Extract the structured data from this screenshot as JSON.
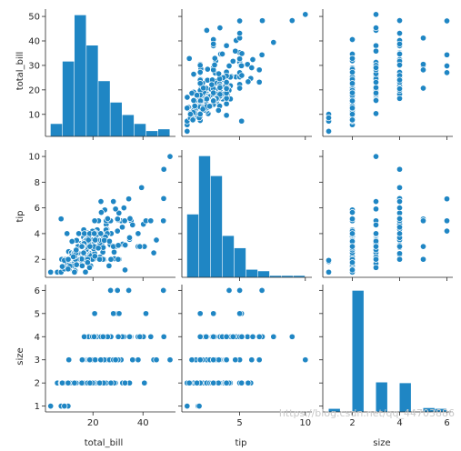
{
  "watermark": "https://blog.csdn.net/qq_44703886",
  "colors": {
    "marker": "#1f86c4",
    "hist": "#1f86c4",
    "edge": "#ffffff",
    "axis": "#262626"
  },
  "chart_data": {
    "type": "scatter",
    "variables": [
      "total_bill",
      "tip",
      "size"
    ],
    "axis_labels": {
      "total_bill": "total_bill",
      "tip": "tip",
      "size": "size"
    },
    "ranges": {
      "total_bill": [
        1.0,
        53.0
      ],
      "tip": [
        0.6,
        10.5
      ],
      "size": [
        0.75,
        6.25
      ]
    },
    "ticks": {
      "total_bill": [
        10,
        20,
        30,
        40,
        50
      ],
      "tip_y": [
        2,
        4,
        6,
        8,
        10
      ],
      "tip_x": [
        5,
        10
      ],
      "size_y": [
        1,
        2,
        3,
        4,
        5,
        6
      ],
      "size_x": [
        2,
        4,
        6
      ],
      "total_bill_x": [
        20,
        40
      ]
    },
    "grid": false,
    "legend": "none",
    "histograms": {
      "total_bill": {
        "edges": [
          3.07,
          7.85,
          12.63,
          17.41,
          22.19,
          26.97,
          31.75,
          36.53,
          41.31,
          46.09,
          50.87
        ],
        "counts": [
          7,
          42,
          68,
          51,
          31,
          19,
          12,
          7,
          3,
          4
        ]
      },
      "tip": {
        "edges": [
          1.0,
          1.9,
          2.8,
          3.7,
          4.6,
          5.5,
          6.4,
          7.3,
          8.2,
          9.1,
          10.0
        ],
        "counts": [
          41,
          79,
          66,
          27,
          19,
          5,
          4,
          1,
          1,
          1
        ]
      },
      "size": {
        "edges": [
          1.0,
          1.5,
          2.0,
          2.5,
          3.0,
          3.5,
          4.0,
          4.5,
          5.0,
          5.5,
          6.0
        ],
        "counts": [
          4,
          0,
          156,
          0,
          38,
          0,
          37,
          0,
          5,
          4
        ]
      }
    },
    "points": [
      [
        16.99,
        1.01,
        2
      ],
      [
        10.34,
        1.66,
        3
      ],
      [
        21.01,
        3.5,
        3
      ],
      [
        23.68,
        3.31,
        2
      ],
      [
        24.59,
        3.61,
        4
      ],
      [
        25.29,
        4.71,
        4
      ],
      [
        8.77,
        2.0,
        2
      ],
      [
        26.88,
        3.12,
        4
      ],
      [
        15.04,
        1.96,
        2
      ],
      [
        14.78,
        3.23,
        2
      ],
      [
        10.27,
        1.71,
        2
      ],
      [
        35.26,
        5.0,
        4
      ],
      [
        15.42,
        1.57,
        2
      ],
      [
        18.43,
        3.0,
        4
      ],
      [
        14.83,
        3.02,
        2
      ],
      [
        21.58,
        3.92,
        2
      ],
      [
        10.33,
        1.67,
        3
      ],
      [
        16.29,
        3.71,
        3
      ],
      [
        16.97,
        3.5,
        3
      ],
      [
        20.65,
        3.35,
        3
      ],
      [
        17.92,
        4.08,
        2
      ],
      [
        20.29,
        2.75,
        2
      ],
      [
        15.77,
        2.23,
        2
      ],
      [
        39.42,
        7.58,
        4
      ],
      [
        19.82,
        3.18,
        2
      ],
      [
        17.81,
        2.34,
        4
      ],
      [
        13.37,
        2.0,
        2
      ],
      [
        12.69,
        2.0,
        2
      ],
      [
        21.7,
        4.3,
        2
      ],
      [
        19.65,
        3.0,
        2
      ],
      [
        9.55,
        1.45,
        2
      ],
      [
        18.35,
        2.5,
        4
      ],
      [
        15.06,
        3.0,
        2
      ],
      [
        20.69,
        2.45,
        4
      ],
      [
        17.78,
        3.27,
        2
      ],
      [
        24.06,
        3.6,
        3
      ],
      [
        16.31,
        2.0,
        3
      ],
      [
        16.93,
        3.07,
        3
      ],
      [
        18.69,
        2.31,
        3
      ],
      [
        31.27,
        5.0,
        3
      ],
      [
        16.04,
        2.24,
        3
      ],
      [
        17.46,
        2.54,
        2
      ],
      [
        13.94,
        3.06,
        2
      ],
      [
        9.68,
        1.32,
        2
      ],
      [
        30.4,
        5.6,
        4
      ],
      [
        18.29,
        3.0,
        2
      ],
      [
        22.23,
        5.0,
        2
      ],
      [
        32.4,
        6.0,
        4
      ],
      [
        28.55,
        2.05,
        3
      ],
      [
        18.04,
        3.0,
        2
      ],
      [
        12.54,
        2.5,
        2
      ],
      [
        10.29,
        2.6,
        2
      ],
      [
        34.81,
        5.2,
        4
      ],
      [
        9.94,
        1.56,
        2
      ],
      [
        25.56,
        4.34,
        4
      ],
      [
        19.49,
        3.51,
        2
      ],
      [
        38.01,
        3.0,
        4
      ],
      [
        26.41,
        1.5,
        2
      ],
      [
        11.24,
        1.76,
        2
      ],
      [
        48.27,
        6.73,
        4
      ],
      [
        20.29,
        3.21,
        2
      ],
      [
        13.81,
        2.0,
        2
      ],
      [
        11.02,
        1.98,
        2
      ],
      [
        18.29,
        3.76,
        4
      ],
      [
        17.59,
        2.64,
        3
      ],
      [
        20.08,
        3.15,
        3
      ],
      [
        16.45,
        2.47,
        2
      ],
      [
        3.07,
        1.0,
        1
      ],
      [
        20.23,
        2.01,
        2
      ],
      [
        15.01,
        2.09,
        2
      ],
      [
        12.02,
        1.97,
        2
      ],
      [
        17.07,
        3.0,
        3
      ],
      [
        26.86,
        3.14,
        2
      ],
      [
        25.28,
        5.0,
        2
      ],
      [
        14.73,
        2.2,
        2
      ],
      [
        10.51,
        1.25,
        2
      ],
      [
        17.92,
        3.08,
        2
      ],
      [
        27.2,
        4.0,
        4
      ],
      [
        22.76,
        3.0,
        2
      ],
      [
        17.29,
        2.71,
        2
      ],
      [
        19.44,
        3.0,
        2
      ],
      [
        16.66,
        3.4,
        2
      ],
      [
        10.07,
        1.83,
        1
      ],
      [
        32.68,
        5.0,
        2
      ],
      [
        15.98,
        2.03,
        2
      ],
      [
        34.83,
        5.17,
        4
      ],
      [
        13.03,
        2.0,
        2
      ],
      [
        18.28,
        4.0,
        2
      ],
      [
        24.71,
        5.85,
        2
      ],
      [
        21.16,
        3.0,
        2
      ],
      [
        28.97,
        3.0,
        2
      ],
      [
        22.49,
        3.5,
        2
      ],
      [
        5.75,
        1.0,
        2
      ],
      [
        16.32,
        4.3,
        2
      ],
      [
        22.75,
        3.25,
        2
      ],
      [
        40.17,
        4.73,
        4
      ],
      [
        27.28,
        4.0,
        2
      ],
      [
        12.03,
        1.5,
        2
      ],
      [
        21.01,
        3.0,
        2
      ],
      [
        12.46,
        1.5,
        2
      ],
      [
        11.35,
        2.5,
        2
      ],
      [
        15.38,
        3.0,
        2
      ],
      [
        44.3,
        2.5,
        3
      ],
      [
        22.42,
        3.48,
        2
      ],
      [
        20.92,
        4.08,
        2
      ],
      [
        15.36,
        1.64,
        2
      ],
      [
        20.49,
        4.06,
        2
      ],
      [
        25.21,
        4.29,
        2
      ],
      [
        18.24,
        3.76,
        2
      ],
      [
        14.31,
        4.0,
        2
      ],
      [
        14.0,
        3.0,
        2
      ],
      [
        7.25,
        1.0,
        1
      ],
      [
        38.07,
        4.0,
        3
      ],
      [
        23.95,
        2.55,
        2
      ],
      [
        25.71,
        4.0,
        3
      ],
      [
        17.31,
        3.5,
        2
      ],
      [
        29.93,
        5.07,
        4
      ],
      [
        10.65,
        1.5,
        2
      ],
      [
        12.43,
        1.8,
        2
      ],
      [
        24.08,
        2.92,
        4
      ],
      [
        11.69,
        2.31,
        2
      ],
      [
        13.42,
        1.68,
        2
      ],
      [
        14.26,
        2.5,
        2
      ],
      [
        15.95,
        2.0,
        2
      ],
      [
        12.48,
        2.52,
        2
      ],
      [
        29.8,
        4.2,
        6
      ],
      [
        8.52,
        1.48,
        2
      ],
      [
        14.52,
        2.0,
        2
      ],
      [
        11.38,
        2.0,
        2
      ],
      [
        22.82,
        2.18,
        3
      ],
      [
        19.08,
        1.5,
        2
      ],
      [
        20.27,
        2.83,
        2
      ],
      [
        11.17,
        1.5,
        2
      ],
      [
        12.26,
        2.0,
        2
      ],
      [
        18.26,
        3.25,
        2
      ],
      [
        8.51,
        1.25,
        2
      ],
      [
        10.33,
        2.0,
        2
      ],
      [
        14.15,
        2.0,
        2
      ],
      [
        16.0,
        2.0,
        2
      ],
      [
        13.16,
        2.75,
        2
      ],
      [
        17.47,
        3.5,
        2
      ],
      [
        34.3,
        6.7,
        6
      ],
      [
        41.19,
        5.0,
        5
      ],
      [
        27.05,
        5.0,
        6
      ],
      [
        16.43,
        2.3,
        2
      ],
      [
        8.35,
        1.5,
        2
      ],
      [
        18.64,
        1.36,
        3
      ],
      [
        11.87,
        1.63,
        2
      ],
      [
        9.78,
        1.73,
        2
      ],
      [
        7.51,
        2.0,
        2
      ],
      [
        14.07,
        2.5,
        2
      ],
      [
        13.13,
        2.0,
        2
      ],
      [
        17.26,
        2.74,
        3
      ],
      [
        24.55,
        2.0,
        4
      ],
      [
        19.77,
        2.0,
        4
      ],
      [
        29.85,
        5.14,
        5
      ],
      [
        48.17,
        5.0,
        6
      ],
      [
        25.0,
        3.75,
        4
      ],
      [
        13.39,
        2.61,
        2
      ],
      [
        16.49,
        2.0,
        4
      ],
      [
        21.5,
        3.5,
        4
      ],
      [
        12.66,
        2.5,
        2
      ],
      [
        16.21,
        2.0,
        3
      ],
      [
        13.81,
        2.0,
        2
      ],
      [
        17.51,
        3.0,
        2
      ],
      [
        24.52,
        3.48,
        3
      ],
      [
        20.76,
        2.24,
        2
      ],
      [
        31.71,
        4.5,
        4
      ],
      [
        10.59,
        1.61,
        2
      ],
      [
        10.63,
        2.0,
        2
      ],
      [
        50.81,
        10.0,
        3
      ],
      [
        15.81,
        3.16,
        2
      ],
      [
        7.25,
        5.15,
        2
      ],
      [
        31.85,
        3.18,
        2
      ],
      [
        16.82,
        4.0,
        2
      ],
      [
        32.9,
        3.11,
        2
      ],
      [
        17.89,
        2.0,
        2
      ],
      [
        14.48,
        2.0,
        2
      ],
      [
        9.6,
        4.0,
        2
      ],
      [
        34.63,
        3.55,
        2
      ],
      [
        34.65,
        3.68,
        4
      ],
      [
        23.33,
        5.65,
        2
      ],
      [
        45.35,
        3.5,
        3
      ],
      [
        23.17,
        6.5,
        4
      ],
      [
        40.55,
        3.0,
        2
      ],
      [
        20.69,
        5.0,
        5
      ],
      [
        20.9,
        3.5,
        3
      ],
      [
        30.46,
        2.0,
        5
      ],
      [
        18.15,
        3.5,
        3
      ],
      [
        23.1,
        4.0,
        3
      ],
      [
        15.69,
        1.5,
        2
      ],
      [
        19.81,
        4.19,
        2
      ],
      [
        28.44,
        2.56,
        2
      ],
      [
        15.48,
        2.02,
        2
      ],
      [
        16.58,
        4.0,
        2
      ],
      [
        7.56,
        1.44,
        2
      ],
      [
        10.34,
        2.0,
        2
      ],
      [
        43.11,
        5.0,
        4
      ],
      [
        13.0,
        2.0,
        2
      ],
      [
        13.51,
        2.0,
        2
      ],
      [
        18.71,
        4.0,
        3
      ],
      [
        12.74,
        2.01,
        2
      ],
      [
        13.0,
        2.0,
        2
      ],
      [
        16.4,
        2.5,
        2
      ],
      [
        20.53,
        4.0,
        4
      ],
      [
        16.47,
        3.23,
        3
      ],
      [
        26.59,
        3.41,
        3
      ],
      [
        38.73,
        3.0,
        4
      ],
      [
        24.27,
        2.03,
        2
      ],
      [
        12.76,
        2.23,
        2
      ],
      [
        30.06,
        2.0,
        3
      ],
      [
        25.89,
        5.16,
        4
      ],
      [
        48.33,
        9.0,
        4
      ],
      [
        13.27,
        2.5,
        2
      ],
      [
        28.17,
        6.5,
        3
      ],
      [
        12.9,
        1.1,
        2
      ],
      [
        28.15,
        3.0,
        5
      ],
      [
        11.59,
        1.5,
        2
      ],
      [
        7.74,
        1.44,
        2
      ],
      [
        30.14,
        3.09,
        4
      ],
      [
        12.16,
        2.2,
        2
      ],
      [
        13.42,
        3.48,
        2
      ],
      [
        8.58,
        1.92,
        1
      ],
      [
        15.98,
        3.0,
        3
      ],
      [
        13.42,
        1.58,
        2
      ],
      [
        16.27,
        2.5,
        2
      ],
      [
        10.09,
        2.0,
        2
      ],
      [
        20.45,
        3.0,
        4
      ],
      [
        13.28,
        2.72,
        2
      ],
      [
        22.12,
        2.88,
        2
      ],
      [
        24.01,
        2.0,
        4
      ],
      [
        15.69,
        3.0,
        3
      ],
      [
        11.61,
        3.39,
        2
      ],
      [
        10.77,
        1.47,
        2
      ],
      [
        15.53,
        3.0,
        2
      ],
      [
        10.07,
        1.25,
        2
      ],
      [
        12.6,
        1.0,
        2
      ],
      [
        32.83,
        1.17,
        2
      ],
      [
        35.83,
        4.67,
        3
      ],
      [
        29.03,
        5.92,
        3
      ],
      [
        27.18,
        2.0,
        2
      ],
      [
        22.67,
        2.0,
        2
      ],
      [
        17.82,
        1.75,
        2
      ],
      [
        18.78,
        3.0,
        2
      ]
    ]
  }
}
